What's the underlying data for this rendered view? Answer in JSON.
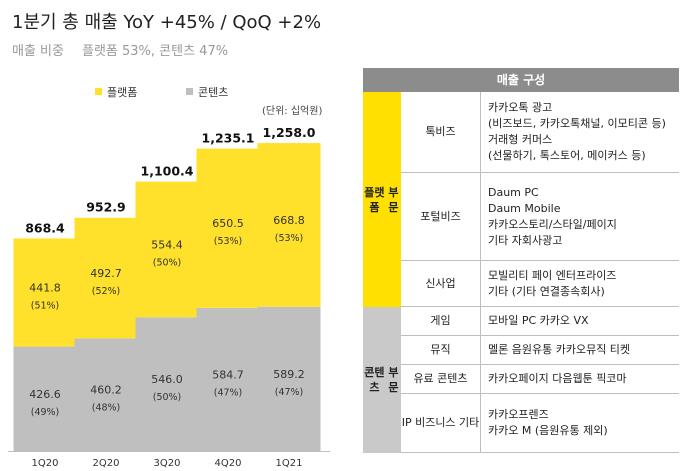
{
  "header": {
    "title": "1분기 총 매출  YoY +45% / QoQ +2%",
    "subtitle_left": "매출 비중",
    "subtitle_right": "플랫폼 53%, 콘텐츠 47%"
  },
  "colors": {
    "platform": "#FFE12B",
    "contents": "#BFBFBF",
    "platform_cat": "#FFE000",
    "contents_cat": "#C9C9C9",
    "table_header": "#8C8C8C"
  },
  "chart_data": {
    "type": "bar",
    "stacked": true,
    "categories": [
      "1Q20",
      "2Q20",
      "3Q20",
      "4Q20",
      "1Q21"
    ],
    "series": [
      {
        "name": "콘텐츠",
        "values": [
          426.6,
          460.2,
          546.0,
          584.7,
          589.2
        ],
        "labels": [
          "(49%)",
          "(48%)",
          "(50%)",
          "(47%)",
          "(47%)"
        ]
      },
      {
        "name": "플랫폼",
        "values": [
          441.8,
          492.7,
          554.4,
          650.5,
          668.8
        ],
        "labels": [
          "(51%)",
          "(52%)",
          "(50%)",
          "(53%)",
          "(53%)"
        ]
      }
    ],
    "totals": [
      868.4,
      952.9,
      1100.4,
      1235.1,
      1258.0
    ],
    "totals_text": [
      "868.4",
      "952.9",
      "1,100.4",
      "1,235.1",
      "1,258.0"
    ],
    "value_text": {
      "contents": [
        "426.6",
        "460.2",
        "546.0",
        "584.7",
        "589.2"
      ],
      "platform": [
        "441.8",
        "492.7",
        "554.4",
        "650.5",
        "668.8"
      ]
    },
    "legend": [
      "플랫폼",
      "콘텐츠"
    ],
    "unit": "(단위: 십억원)",
    "ylim": [
      0,
      1300
    ]
  },
  "table": {
    "header": "매출 구성",
    "groups": [
      {
        "label": "플랫폼 부문",
        "rows": [
          {
            "name": "톡비즈",
            "lines": [
              "카카오톡 광고",
              "(비즈보드, 카카오톡채널, 이모티콘 등)",
              "거래형 커머스",
              "(선물하기, 톡스토어, 메이커스 등)"
            ]
          },
          {
            "name": "포털비즈",
            "lines": [
              "Daum PC",
              "Daum Mobile",
              "카카오스토리/스타일/페이지",
              "기타 자회사광고"
            ]
          },
          {
            "name": "신사업",
            "lines": [
              "모빌리티   페이   엔터프라이즈",
              "기타 (기타 연결종속회사)"
            ]
          }
        ]
      },
      {
        "label": "콘텐츠 부문",
        "rows": [
          {
            "name": "게임",
            "lines": [
              "모바일   PC   카카오 VX"
            ]
          },
          {
            "name": "뮤직",
            "lines": [
              "멜론   음원유통   카카오뮤직   티켓"
            ]
          },
          {
            "name": "유료 콘텐츠",
            "lines": [
              "카카오페이지   다음웹툰   픽코마"
            ]
          },
          {
            "name": "IP 비즈니스 기타",
            "lines": [
              "카카오프렌즈",
              "카카오 M (음원유통 제외)"
            ]
          }
        ]
      }
    ]
  }
}
